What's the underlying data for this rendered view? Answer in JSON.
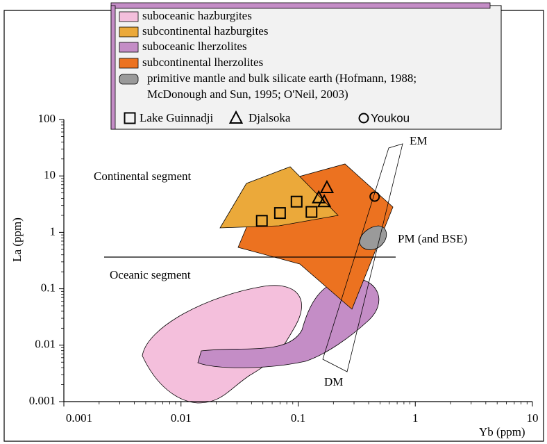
{
  "chart_data": {
    "type": "scatter",
    "xlabel": "Yb (ppm)",
    "ylabel": "La (ppm)",
    "xscale": "log",
    "yscale": "log",
    "xlim": [
      0.001,
      10
    ],
    "ylim": [
      0.001,
      100
    ],
    "xticks": [
      0.001,
      0.01,
      0.1,
      1,
      10
    ],
    "yticks": [
      0.001,
      0.01,
      0.1,
      1,
      10,
      100
    ],
    "regions": [
      {
        "name": "suboceanic hazburgites",
        "color": "#f4bfdc"
      },
      {
        "name": "subcontinental hazburgites",
        "color": "#eba93a"
      },
      {
        "name": "suboceanic lherzolites",
        "color": "#c48dc6"
      },
      {
        "name": "subcontinental lherzolites",
        "color": "#ec7220"
      },
      {
        "name": [
          "primitive mantle and bulk silicate earth (Hofmann, 1988;",
          "McDonough and Sun, 1995; O'Neil, 2003)"
        ],
        "color": "#9a9a9a"
      }
    ],
    "series": [
      {
        "name": "Lake Guinnadji",
        "marker": "square",
        "color": "#000000",
        "x": [
          0.049,
          0.07,
          0.097,
          0.13
        ],
        "values": [
          1.6,
          2.2,
          3.5,
          2.3
        ]
      },
      {
        "name": "Djalsoka",
        "marker": "triangle",
        "color": "#000000",
        "x": [
          0.15,
          0.167,
          0.176
        ],
        "values": [
          4.1,
          3.5,
          6.2
        ]
      },
      {
        "name": "Youkou",
        "marker": "circle",
        "color": "#000000",
        "x": [
          0.45
        ],
        "values": [
          4.3
        ]
      }
    ],
    "annotations": [
      "Continental segment",
      "Oceanic segment",
      "EM",
      "DM",
      "PM (and BSE)"
    ]
  }
}
